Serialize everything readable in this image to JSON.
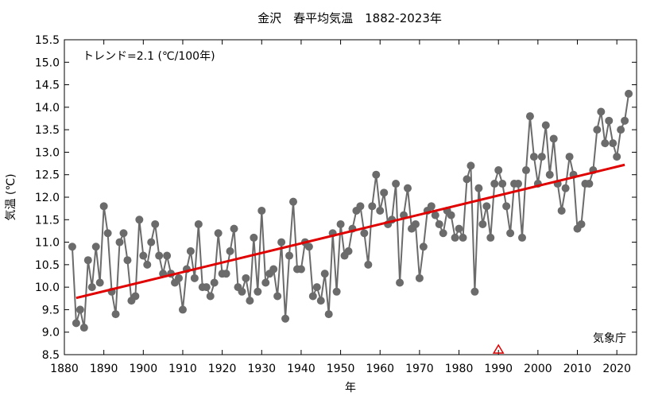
{
  "chart_data": {
    "type": "line",
    "title": "金沢　春平均気温　1882-2023年",
    "xlabel": "年",
    "ylabel": "気温 (℃)",
    "xlim": [
      1880,
      2025
    ],
    "ylim": [
      8.5,
      15.5
    ],
    "xticks": [
      1880,
      1890,
      1900,
      1910,
      1920,
      1930,
      1940,
      1950,
      1960,
      1970,
      1980,
      1990,
      2000,
      2010,
      2020
    ],
    "yticks": [
      8.5,
      9.0,
      9.5,
      10.0,
      10.5,
      11.0,
      11.5,
      12.0,
      12.5,
      13.0,
      13.5,
      14.0,
      14.5,
      15.0,
      15.5
    ],
    "ytick_labels": [
      "8.5",
      "9.0",
      "9.5",
      "10.0",
      "10.5",
      "11.0",
      "11.5",
      "12.0",
      "12.5",
      "13.0",
      "13.5",
      "14.0",
      "14.5",
      "15.0",
      "15.5"
    ],
    "annotation_trend": "トレンド=2.1 (℃/100年)",
    "source_label": "気象庁",
    "grid": false,
    "series": [
      {
        "color": "#6b6b6b",
        "x": [
          1882,
          1883,
          1884,
          1885,
          1886,
          1887,
          1888,
          1889,
          1890,
          1891,
          1892,
          1893,
          1894,
          1895,
          1896,
          1897,
          1898,
          1899,
          1900,
          1901,
          1902,
          1903,
          1904,
          1905,
          1906,
          1907,
          1908,
          1909,
          1910,
          1911,
          1912,
          1913,
          1914,
          1915,
          1916,
          1917,
          1918,
          1919,
          1920,
          1921,
          1922,
          1923,
          1924,
          1925,
          1926,
          1927,
          1928,
          1929,
          1930,
          1931,
          1932,
          1933,
          1934,
          1935,
          1936,
          1937,
          1938,
          1939,
          1940,
          1941,
          1942,
          1943,
          1944,
          1945,
          1946,
          1947,
          1948,
          1949,
          1950,
          1951,
          1952,
          1953,
          1954,
          1955,
          1956,
          1957,
          1958,
          1959,
          1960,
          1961,
          1962,
          1963,
          1964,
          1965,
          1966,
          1967,
          1968,
          1969,
          1970,
          1971,
          1972,
          1973,
          1974,
          1975,
          1976,
          1977,
          1978,
          1979,
          1980,
          1981,
          1982,
          1983,
          1984,
          1985,
          1986,
          1987,
          1988,
          1989,
          1990,
          1991,
          1992,
          1993,
          1994,
          1995,
          1996,
          1997,
          1998,
          1999,
          2000,
          2001,
          2002,
          2003,
          2004,
          2005,
          2006,
          2007,
          2008,
          2009,
          2010,
          2011,
          2012,
          2013,
          2014,
          2015,
          2016,
          2017,
          2018,
          2019,
          2020,
          2021,
          2022,
          2023
        ],
        "y": [
          10.9,
          9.2,
          9.5,
          9.1,
          10.6,
          10.0,
          10.9,
          10.1,
          11.8,
          11.2,
          9.9,
          9.4,
          11.0,
          11.2,
          10.6,
          9.7,
          9.8,
          11.5,
          10.7,
          10.5,
          11.0,
          11.4,
          10.7,
          10.3,
          10.7,
          10.3,
          10.1,
          10.2,
          9.5,
          10.4,
          10.8,
          10.2,
          11.4,
          10.0,
          10.0,
          9.8,
          10.1,
          11.2,
          10.3,
          10.3,
          10.8,
          11.3,
          10.0,
          9.9,
          10.2,
          9.7,
          11.1,
          9.9,
          11.7,
          10.1,
          10.3,
          10.4,
          9.8,
          11.0,
          9.3,
          10.7,
          11.9,
          10.4,
          10.4,
          11.0,
          10.9,
          9.8,
          10.0,
          9.7,
          10.3,
          9.4,
          11.2,
          9.9,
          11.4,
          10.7,
          10.8,
          11.3,
          11.7,
          11.8,
          11.2,
          10.5,
          11.8,
          12.5,
          11.7,
          12.1,
          11.4,
          11.5,
          12.3,
          10.1,
          11.6,
          12.2,
          11.3,
          11.4,
          10.2,
          10.9,
          11.7,
          11.8,
          11.6,
          11.4,
          11.2,
          11.7,
          11.6,
          11.1,
          11.3,
          11.1,
          12.4,
          12.7,
          9.9,
          12.2,
          11.4,
          11.8,
          11.1,
          12.3,
          12.6,
          12.3,
          11.8,
          11.2,
          12.3,
          12.3,
          11.1,
          12.6,
          13.8,
          12.9,
          12.3,
          12.9,
          13.6,
          12.5,
          13.3,
          12.3,
          11.7,
          12.2,
          12.9,
          12.5,
          11.3,
          11.4,
          12.3,
          12.3,
          12.6,
          13.5,
          13.9,
          13.2,
          13.7,
          13.2,
          12.9,
          13.5,
          13.7,
          14.3
        ]
      }
    ],
    "trend": {
      "color": "#e00000",
      "x": [
        1883,
        2022
      ],
      "y": [
        9.76,
        12.72
      ]
    },
    "marker": {
      "type": "triangle",
      "x": 1990,
      "color": "#e00000"
    }
  }
}
